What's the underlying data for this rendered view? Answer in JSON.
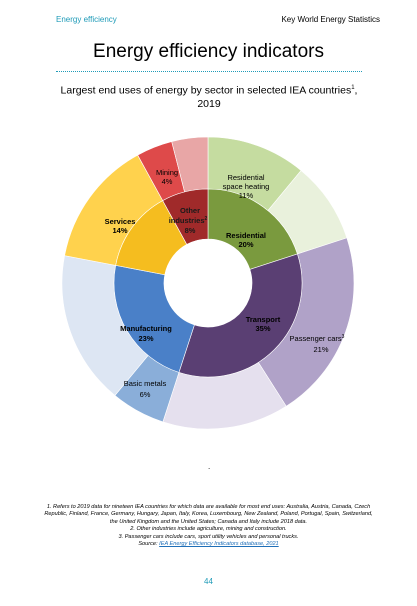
{
  "header": {
    "section": "Energy efficiency",
    "book": "Key World Energy Statistics"
  },
  "page_title": "Energy efficiency indicators",
  "chart_title_line1": "Largest end uses of energy by sector in selected IEA countries",
  "chart_title_sup": "1",
  "chart_title_line2": "2019",
  "chart_data": {
    "type": "pie",
    "title": "Largest end uses of energy by sector in selected IEA countries, 2019",
    "inner_ring": [
      {
        "label": "Residential",
        "value": 20,
        "color": "#7a9a3e"
      },
      {
        "label": "Transport",
        "value": 35,
        "color": "#5a3f73"
      },
      {
        "label": "Manufacturing",
        "value": 23,
        "color": "#4a80c8"
      },
      {
        "label": "Services",
        "value": 14,
        "color": "#f5bd1f"
      },
      {
        "label": "Other industries",
        "value": 8,
        "color": "#a02a2a"
      }
    ],
    "outer_ring": [
      {
        "label": "Residential space heating",
        "value": 11,
        "color": "#c5dca0"
      },
      {
        "label": "",
        "value": 9,
        "color": "#e9f1dc"
      },
      {
        "label": "Passenger cars",
        "value": 21,
        "color": "#b0a2c8"
      },
      {
        "label": "",
        "value": 14,
        "color": "#e5e0ee"
      },
      {
        "label": "Basic metals",
        "value": 6,
        "color": "#8aaed9"
      },
      {
        "label": "",
        "value": 17,
        "color": "#dde6f3"
      },
      {
        "label": "",
        "value": 14,
        "color": "#ffd24d"
      },
      {
        "label": "Mining",
        "value": 4,
        "color": "#de4a4a"
      },
      {
        "label": "",
        "value": 4,
        "color": "#e8a6a6"
      }
    ],
    "labels": {
      "res_space_1": "Residential",
      "res_space_2": "space heating",
      "res_space_3": "11%",
      "residential": "Residential",
      "residential_pct": "20%",
      "transport": "Transport",
      "transport_pct": "35%",
      "passenger": "Passenger cars",
      "passenger_sup": "3",
      "passenger_pct": "21%",
      "manufacturing": "Manufacturing",
      "manufacturing_pct": "23%",
      "basic_metals": "Basic metals",
      "basic_metals_pct": "6%",
      "services": "Services",
      "services_pct": "14%",
      "mining": "Mining",
      "mining_pct": "4%",
      "other_1": "Other",
      "other_2": "industries",
      "other_sup": "2",
      "other_pct": "8%"
    }
  },
  "dot": ".",
  "notes": {
    "n1": "1. Refers to 2019 data for nineteen IEA countries for which data are available for most end uses: Australia, Austria, Canada, Czech Republic, Finland, France, Germany, Hungary, Japan, Italy, Korea, Luxembourg, New Zealand, Poland, Portugal, Spain, Switzerland, the United Kingdom and the United States; Canada and Italy include 2018 data.",
    "n2": "2. Other industries include agriculture, mining and construction.",
    "n3": "3. Passenger cars include cars, sport utility vehicles and personal trucks.",
    "source_prefix": "Source: ",
    "source_link": "IEA Energy Efficiency Indicators database, 2021"
  },
  "page_number": "44"
}
